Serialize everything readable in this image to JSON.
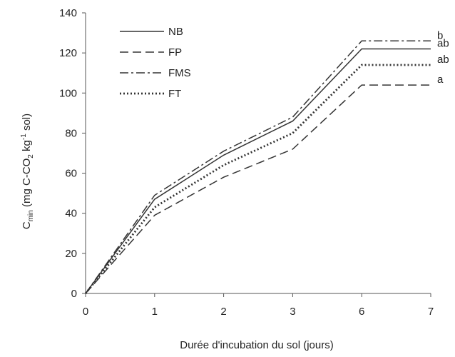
{
  "chart_data": {
    "type": "line",
    "title": "",
    "xlabel": "Durée d'incubation du sol (jours)",
    "ylabel": {
      "main": "C",
      "main_sub": "min",
      "pre": " (mg C-CO",
      "co2_sub": "2",
      "mid": " kg",
      "sup": "-1",
      "post": " sol)"
    },
    "categories": [
      "0",
      "1",
      "2",
      "3",
      "6",
      "7"
    ],
    "yticks": [
      "0",
      "20",
      "40",
      "60",
      "80",
      "100",
      "120",
      "140"
    ],
    "ylim": [
      0,
      140
    ],
    "grid": false,
    "legend_position": "top-left",
    "series": [
      {
        "name": "NB",
        "style": "solid",
        "values": [
          0,
          47,
          69,
          86,
          122,
          122
        ],
        "significance": "ab"
      },
      {
        "name": "FP",
        "style": "dashed",
        "values": [
          0,
          39,
          58,
          72,
          104,
          104
        ],
        "significance": "a"
      },
      {
        "name": "FMS",
        "style": "dashdot",
        "values": [
          0,
          49,
          71,
          88,
          126,
          126
        ],
        "significance": "b"
      },
      {
        "name": "FT",
        "style": "dotted",
        "values": [
          0,
          43,
          64,
          80,
          114,
          114
        ],
        "significance": "ab"
      }
    ],
    "colors": {
      "line": "#333333",
      "axis": "#555555"
    }
  }
}
